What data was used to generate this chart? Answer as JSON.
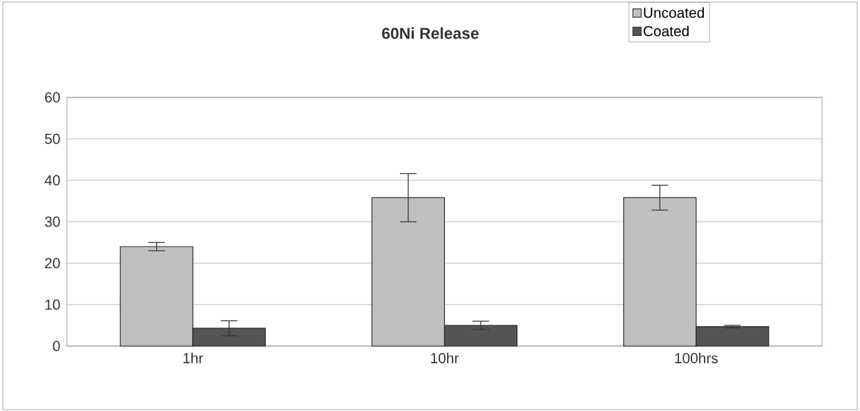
{
  "chart_data": {
    "type": "bar",
    "title": "60Ni Release",
    "categories": [
      "1hr",
      "10hr",
      "100hrs"
    ],
    "series": [
      {
        "name": "Uncoated",
        "color": "#c0c0c0",
        "values": [
          24.0,
          35.8,
          35.8
        ],
        "errors": [
          1.0,
          5.8,
          3.0
        ]
      },
      {
        "name": "Coated",
        "color": "#555555",
        "values": [
          4.3,
          5.0,
          4.7
        ],
        "errors": [
          1.8,
          1.0,
          0.3
        ]
      }
    ],
    "ylim": [
      0,
      60
    ],
    "yticks": [
      0,
      10,
      20,
      30,
      40,
      50,
      60
    ],
    "grid": "y",
    "legend": "top right"
  }
}
